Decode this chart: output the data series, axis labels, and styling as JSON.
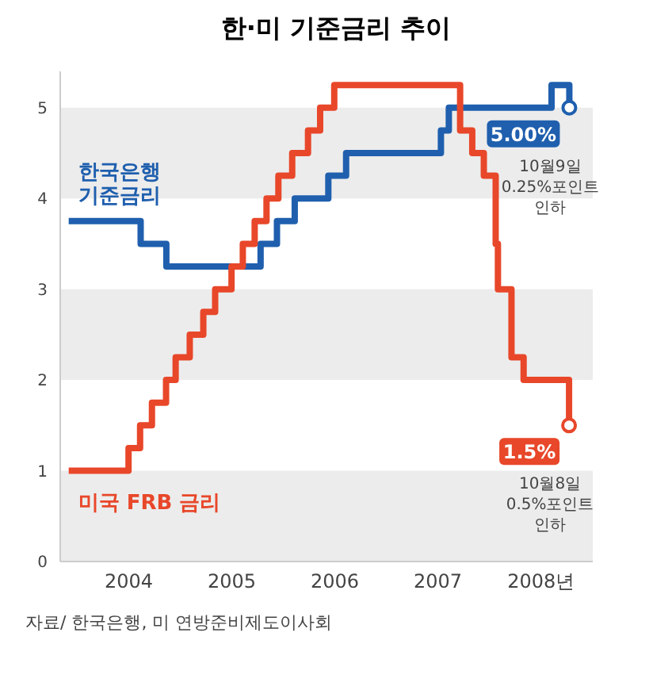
{
  "chart_data": {
    "type": "step",
    "title": "한·미 기준금리 추이",
    "series": [
      {
        "name": "한국은행 기준금리",
        "color": "#1f5fae",
        "x": [
          "2003-12-01",
          "2004-08-12",
          "2004-11-11",
          "2005-10-11",
          "2005-12-08",
          "2006-02-09",
          "2006-06-08",
          "2006-08-10",
          "2007-07-12",
          "2007-08-09",
          "2008-08-07",
          "2008-10-09"
        ],
        "values": [
          3.75,
          3.5,
          3.25,
          3.5,
          3.75,
          4.0,
          4.25,
          4.5,
          4.75,
          5.0,
          5.25,
          5.0
        ]
      },
      {
        "name": "미국 FRB 금리",
        "color": "#e8472a",
        "x": [
          "2003-12-01",
          "2004-06-30",
          "2004-08-10",
          "2004-09-21",
          "2004-11-10",
          "2004-12-14",
          "2005-02-02",
          "2005-03-22",
          "2005-05-03",
          "2005-06-30",
          "2005-08-09",
          "2005-09-20",
          "2005-11-01",
          "2005-12-13",
          "2006-01-31",
          "2006-03-28",
          "2006-05-10",
          "2006-06-29",
          "2007-09-18",
          "2007-10-31",
          "2007-12-11",
          "2008-01-22",
          "2008-01-30",
          "2008-03-18",
          "2008-04-30",
          "2008-10-08"
        ],
        "values": [
          1.0,
          1.25,
          1.5,
          1.75,
          2.0,
          2.25,
          2.5,
          2.75,
          3.0,
          3.25,
          3.5,
          3.75,
          4.0,
          4.25,
          4.5,
          4.75,
          5.0,
          5.25,
          4.75,
          4.5,
          4.25,
          3.5,
          3.0,
          2.25,
          2.0,
          1.5
        ]
      }
    ],
    "xlim": [
      "2003-11-01",
      "2008-12-31"
    ],
    "xticks": [
      {
        "value": "2004-07-01",
        "label": "2004"
      },
      {
        "value": "2005-07-01",
        "label": "2005"
      },
      {
        "value": "2006-07-01",
        "label": "2006"
      },
      {
        "value": "2007-07-01",
        "label": "2007"
      },
      {
        "value": "2008-07-01",
        "label": "2008년"
      }
    ],
    "ylim": [
      0,
      5.4
    ],
    "yticks": [
      0,
      1,
      2,
      3,
      4,
      5
    ],
    "bands": [
      {
        "axis": "y",
        "from": 0,
        "to": 1,
        "color": "#ececec"
      },
      {
        "axis": "y",
        "from": 2,
        "to": 3,
        "color": "#ececec"
      },
      {
        "axis": "y",
        "from": 4,
        "to": 5,
        "color": "#ececec"
      }
    ],
    "annotations": [
      "자료/ 한국은행, 미 연방준비제도이사회",
      {
        "text": "5.00%",
        "x": "2008-10-09",
        "y": 5.0
      },
      "10월9일 0.25%포인트 인하",
      {
        "text": "1.5%",
        "x": "2008-10-08",
        "y": 1.5
      },
      "10월8일 0.5%포인트 인하"
    ],
    "grid": false,
    "legend": false,
    "marker": "none",
    "line_style": "solid"
  }
}
